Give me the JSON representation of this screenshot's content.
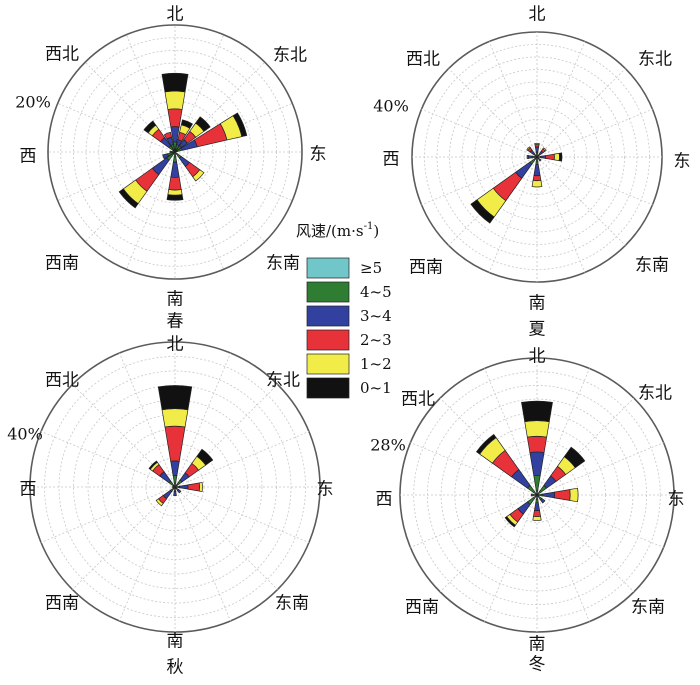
{
  "chart_data": {
    "type": "wind-rose",
    "directions": [
      "北",
      "东北",
      "东",
      "东南",
      "南",
      "西南",
      "西",
      "西北"
    ],
    "legend": {
      "title": "风速/(m·s",
      "title_sup": "-1",
      "title_end": ")",
      "items": [
        {
          "label": "≥5",
          "color": "#71c6c9"
        },
        {
          "label": "4~5",
          "color": "#2e7d32"
        },
        {
          "label": "3~4",
          "color": "#3240a0"
        },
        {
          "label": "2~3",
          "color": "#e8323a"
        },
        {
          "label": "1~2",
          "color": "#f2ec48"
        },
        {
          "label": "0~1",
          "color": "#111111"
        }
      ]
    },
    "charts": [
      {
        "season": "春",
        "max_label": "20%",
        "rmax": 25,
        "petals": [
          {
            "dir": "北",
            "angle": 0,
            "values": [
              0.5,
              1.5,
              3,
              3.5,
              3.5,
              3.5
            ]
          },
          {
            "dir": "北偏东",
            "angle": 22.5,
            "values": [
              0.5,
              1,
              1,
              1.5,
              1.5,
              1
            ]
          },
          {
            "dir": "东北",
            "angle": 45,
            "values": [
              0.5,
              1,
              1.5,
              2,
              2,
              1.5
            ]
          },
          {
            "dir": "东偏北",
            "angle": 67.5,
            "values": [
              0.5,
              1,
              3,
              6,
              3,
              1
            ]
          },
          {
            "dir": "东南",
            "angle": 135,
            "values": [
              0.5,
              1,
              2,
              2.5,
              1,
              0
            ]
          },
          {
            "dir": "南",
            "angle": 180,
            "values": [
              0.5,
              1.5,
              3,
              2.5,
              1,
              1
            ]
          },
          {
            "dir": "西南",
            "angle": 225,
            "values": [
              0.5,
              1.5,
              3.5,
              4,
              3,
              1
            ]
          },
          {
            "dir": "西偏南",
            "angle": 247.5,
            "values": [
              0.5,
              1,
              1,
              0,
              0,
              0
            ]
          },
          {
            "dir": "西",
            "angle": 270,
            "values": [
              0.5,
              0.5,
              0,
              0,
              0,
              0
            ]
          },
          {
            "dir": "西北",
            "angle": 315,
            "values": [
              0.5,
              1,
              2,
              2,
              1,
              1
            ]
          },
          {
            "dir": "北偏西",
            "angle": 337.5,
            "values": [
              0.5,
              1,
              1.5,
              1,
              0,
              0
            ]
          }
        ]
      },
      {
        "season": "夏",
        "max_label": "40%",
        "rmax": 50,
        "petals": [
          {
            "dir": "北",
            "angle": 0,
            "values": [
              1,
              1,
              2,
              1,
              0.5,
              0
            ]
          },
          {
            "dir": "东北",
            "angle": 45,
            "values": [
              0.5,
              1,
              1.5,
              1,
              0.5,
              0
            ]
          },
          {
            "dir": "东",
            "angle": 90,
            "values": [
              0.5,
              1,
              2,
              3.5,
              2,
              1
            ]
          },
          {
            "dir": "东南",
            "angle": 135,
            "values": [
              0.5,
              1,
              0.5,
              0,
              0,
              0
            ]
          },
          {
            "dir": "南",
            "angle": 180,
            "values": [
              1,
              2,
              4.5,
              2,
              2.5,
              0
            ]
          },
          {
            "dir": "西南",
            "angle": 225,
            "values": [
              1,
              2.5,
              7,
              11,
              8,
              3
            ]
          },
          {
            "dir": "西",
            "angle": 270,
            "values": [
              1,
              1,
              1.5,
              0.5,
              0,
              0
            ]
          },
          {
            "dir": "西北",
            "angle": 315,
            "values": [
              0.5,
              1,
              2,
              1,
              0.5,
              0
            ]
          }
        ]
      },
      {
        "season": "秋",
        "max_label": "40%",
        "rmax": 50,
        "petals": [
          {
            "dir": "北",
            "angle": 0,
            "values": [
              1,
              3,
              5,
              12,
              6,
              8
            ]
          },
          {
            "dir": "东北",
            "angle": 45,
            "values": [
              1,
              2,
              3,
              4,
              3,
              3
            ]
          },
          {
            "dir": "东",
            "angle": 90,
            "values": [
              0.5,
              1,
              3,
              4,
              1,
              0
            ]
          },
          {
            "dir": "东南",
            "angle": 135,
            "values": [
              0.5,
              1,
              1,
              0,
              0,
              0
            ]
          },
          {
            "dir": "南",
            "angle": 180,
            "values": [
              0.5,
              1,
              1.5,
              0,
              0,
              0
            ]
          },
          {
            "dir": "西南",
            "angle": 225,
            "values": [
              0.5,
              1.5,
              3,
              2,
              1,
              0
            ]
          },
          {
            "dir": "西",
            "angle": 270,
            "values": [
              0.5,
              0.5,
              0,
              0,
              0,
              0
            ]
          },
          {
            "dir": "西北",
            "angle": 315,
            "values": [
              0.5,
              2,
              4,
              3,
              1,
              0.5
            ]
          }
        ]
      },
      {
        "season": "冬",
        "max_label": "28%",
        "rmax": 35,
        "petals": [
          {
            "dir": "北",
            "angle": 0,
            "values": [
              1,
              4,
              6,
              4,
              4,
              5
            ]
          },
          {
            "dir": "东北",
            "angle": 45,
            "values": [
              1,
              2,
              3,
              3,
              3,
              3
            ]
          },
          {
            "dir": "东",
            "angle": 90,
            "values": [
              0.5,
              1,
              3,
              4,
              2,
              0
            ]
          },
          {
            "dir": "东南",
            "angle": 135,
            "values": [
              0.5,
              1,
              1,
              0,
              0,
              0
            ]
          },
          {
            "dir": "南",
            "angle": 180,
            "values": [
              1,
              1,
              2,
              1.5,
              1,
              0
            ]
          },
          {
            "dir": "西南",
            "angle": 225,
            "values": [
              1,
              2,
              3,
              2.5,
              1,
              0.5
            ]
          },
          {
            "dir": "西",
            "angle": 270,
            "values": [
              0.5,
              1,
              0,
              0,
              0,
              0
            ]
          },
          {
            "dir": "西北",
            "angle": 315,
            "values": [
              1,
              2,
              5,
              6,
              4,
              1
            ]
          }
        ]
      }
    ]
  }
}
